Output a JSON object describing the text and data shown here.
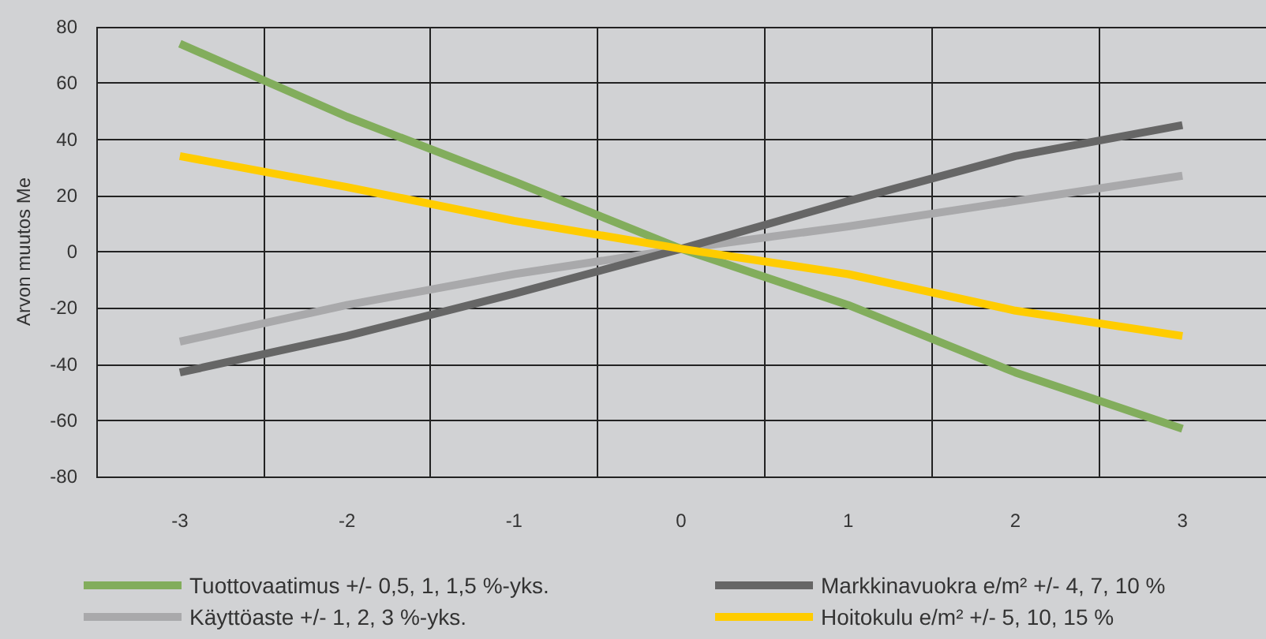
{
  "chart_data": {
    "type": "line",
    "ylabel": "Arvon muutos Me",
    "categories": [
      "-3",
      "-2",
      "-1",
      "0",
      "1",
      "2",
      "3"
    ],
    "series": [
      {
        "name": "Tuottovaatimus +/- 0,5, 1, 1,5 %-yks.",
        "color": "#82ad5c",
        "values": [
          74,
          48,
          25,
          1,
          -19,
          -43,
          -63
        ]
      },
      {
        "name": "Käyttöaste +/- 1, 2, 3 %-yks.",
        "color": "#a9a9ab",
        "values": [
          -32,
          -19,
          -8,
          1,
          9,
          18,
          27
        ]
      },
      {
        "name": "Markkinavuokra e/m² +/- 4, 7, 10 %",
        "color": "#666666",
        "values": [
          -43,
          -30,
          -15,
          1,
          18,
          34,
          45
        ]
      },
      {
        "name": "Hoitokulu e/m² +/- 5, 10, 15 %",
        "color": "#ffcc00",
        "values": [
          34,
          23,
          11,
          1,
          -8,
          -21,
          -30
        ]
      }
    ],
    "ylim": [
      -80,
      80
    ],
    "yticks": [
      -80,
      -60,
      -40,
      -20,
      0,
      20,
      40,
      60,
      80
    ],
    "grid": true,
    "legend": "bottom",
    "marker": "none",
    "line_style": "solid"
  }
}
